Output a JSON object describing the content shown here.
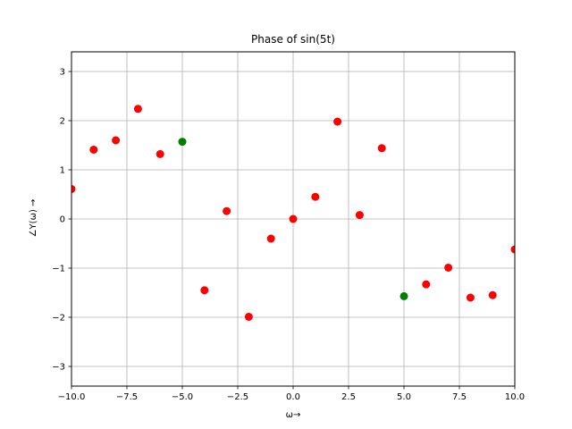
{
  "chart_data": {
    "type": "scatter",
    "title": "Phase of sin(5t)",
    "xlabel": "ω→",
    "ylabel": "∠Y(ω) →",
    "xlim": [
      -10,
      10
    ],
    "ylim": [
      -3.4,
      3.4
    ],
    "xticks": [
      -10,
      -7.5,
      -5,
      -2.5,
      0,
      2.5,
      5,
      7.5,
      10
    ],
    "xtick_labels": [
      "−10.0",
      "−7.5",
      "−5.0",
      "−2.5",
      "0.0",
      "2.5",
      "5.0",
      "7.5",
      "10.0"
    ],
    "yticks": [
      -3,
      -2,
      -1,
      0,
      1,
      2,
      3
    ],
    "ytick_labels": [
      "−3",
      "−2",
      "−1",
      "0",
      "1",
      "2",
      "3"
    ],
    "grid": true,
    "colors": {
      "red": "#ff0000",
      "green": "#008000",
      "grid": "#b0b0b0"
    },
    "points": [
      {
        "x": -10,
        "y": 0.61,
        "color": "red"
      },
      {
        "x": -9,
        "y": 1.41,
        "color": "red"
      },
      {
        "x": -8,
        "y": 1.6,
        "color": "red"
      },
      {
        "x": -7,
        "y": 2.24,
        "color": "red"
      },
      {
        "x": -6,
        "y": 1.32,
        "color": "red"
      },
      {
        "x": -5,
        "y": 1.5708,
        "color": "green"
      },
      {
        "x": -4,
        "y": -1.45,
        "color": "red"
      },
      {
        "x": -3,
        "y": 0.16,
        "color": "red"
      },
      {
        "x": -2,
        "y": -1.99,
        "color": "red"
      },
      {
        "x": -1,
        "y": -0.4,
        "color": "red"
      },
      {
        "x": 0,
        "y": 0.0,
        "color": "red"
      },
      {
        "x": 1,
        "y": 0.45,
        "color": "red"
      },
      {
        "x": 2,
        "y": 1.98,
        "color": "red"
      },
      {
        "x": 3,
        "y": 0.08,
        "color": "red"
      },
      {
        "x": 4,
        "y": 1.44,
        "color": "red"
      },
      {
        "x": 5,
        "y": -1.5708,
        "color": "green"
      },
      {
        "x": 6,
        "y": -1.33,
        "color": "red"
      },
      {
        "x": 7,
        "y": -0.99,
        "color": "red"
      },
      {
        "x": 8,
        "y": -1.6,
        "color": "red"
      },
      {
        "x": 9,
        "y": -1.55,
        "color": "red"
      },
      {
        "x": 10,
        "y": -0.62,
        "color": "red"
      }
    ]
  }
}
